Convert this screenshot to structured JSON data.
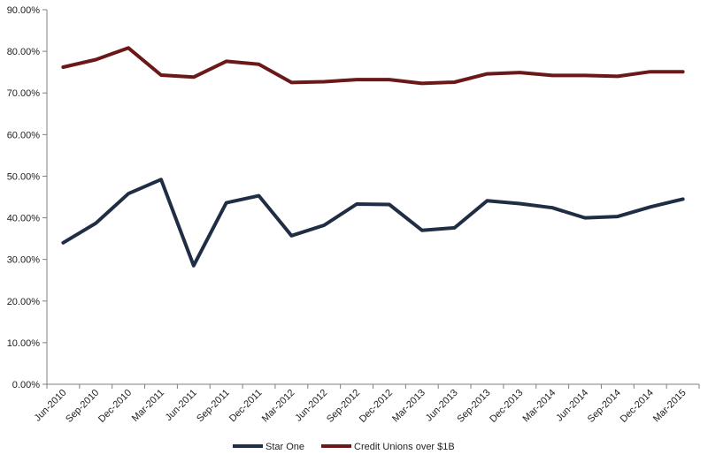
{
  "chart_data": {
    "type": "line",
    "title": "",
    "xlabel": "",
    "ylabel": "",
    "ylim": [
      0,
      90
    ],
    "y_ticks": [
      "0.00%",
      "10.00%",
      "20.00%",
      "30.00%",
      "40.00%",
      "50.00%",
      "60.00%",
      "70.00%",
      "80.00%",
      "90.00%"
    ],
    "y_tick_values": [
      0,
      10,
      20,
      30,
      40,
      50,
      60,
      70,
      80,
      90
    ],
    "categories": [
      "Jun-2010",
      "Sep-2010",
      "Dec-2010",
      "Mar-2011",
      "Jun-2011",
      "Sep-2011",
      "Dec-2011",
      "Mar-2012",
      "Jun-2012",
      "Sep-2012",
      "Dec-2012",
      "Mar-2013",
      "Jun-2013",
      "Sep-2013",
      "Dec-2013",
      "Mar-2014",
      "Jun-2014",
      "Sep-2014",
      "Dec-2014",
      "Mar-2015"
    ],
    "grid": false,
    "legend_position": "bottom",
    "series": [
      {
        "name": "Star One",
        "color": "#1f2d45",
        "values": [
          34.0,
          38.7,
          45.8,
          49.2,
          28.5,
          43.6,
          45.3,
          35.7,
          38.2,
          43.3,
          43.2,
          37.0,
          37.6,
          44.1,
          43.4,
          42.4,
          40.0,
          40.3,
          42.6,
          44.5
        ]
      },
      {
        "name": "Credit Unions over $1B",
        "color": "#6b1818",
        "values": [
          76.2,
          78.0,
          80.8,
          74.3,
          73.8,
          77.6,
          76.9,
          72.5,
          72.7,
          73.2,
          73.2,
          72.3,
          72.6,
          74.6,
          74.9,
          74.2,
          74.2,
          74.0,
          75.1,
          75.1
        ]
      }
    ]
  }
}
